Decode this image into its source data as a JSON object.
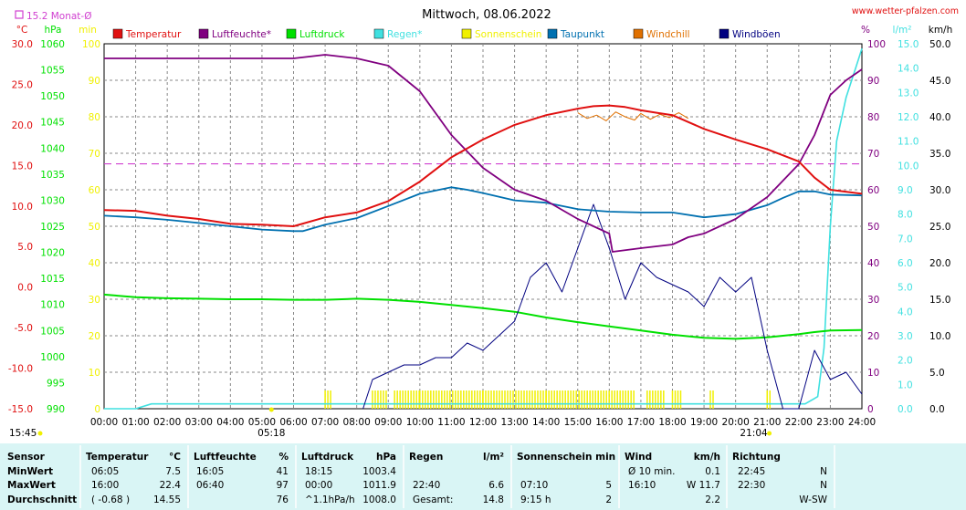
{
  "header": {
    "date_title": "Mittwoch, 08.06.2022",
    "website": "www.wetter-pfalzen.com",
    "monthly_avg_label": "15.2 Monat-Ø",
    "sunrise_time": "05:18",
    "sunset_time": "21:04",
    "run_time": "15:45"
  },
  "colors": {
    "temperature": "#e01010",
    "humidity": "#800080",
    "pressure": "#00e000",
    "rain": "#40e0e0",
    "sunshine": "#f0f000",
    "dewpoint": "#0070b0",
    "windchill": "#e07000",
    "gusts": "#000080",
    "monthly_avg": "#d040d0",
    "stats_bg": "#d9f5f5"
  },
  "chart_data": {
    "type": "line",
    "title": "Mittwoch, 08.06.2022",
    "x_ticks": [
      "00:00",
      "01:00",
      "02:00",
      "03:00",
      "04:00",
      "05:00",
      "06:00",
      "07:00",
      "08:00",
      "09:00",
      "10:00",
      "11:00",
      "12:00",
      "13:00",
      "14:00",
      "15:00",
      "16:00",
      "17:00",
      "18:00",
      "19:00",
      "20:00",
      "21:00",
      "22:00",
      "23:00",
      "24:00"
    ],
    "x_range_hours": [
      0,
      24
    ],
    "grid": true,
    "legend_position": "top",
    "axes": {
      "temperature": {
        "unit": "°C",
        "range": [
          -15,
          30
        ],
        "ticks": [
          "30.0",
          "25.0",
          "20.0",
          "15.0",
          "10.0",
          "5.0",
          "0.0",
          "-5.0",
          "-10.0",
          "-15.0"
        ]
      },
      "pressure": {
        "unit": "hPa",
        "range": [
          990,
          1060
        ],
        "ticks": [
          "1060",
          "1055",
          "1050",
          "1045",
          "1040",
          "1035",
          "1030",
          "1025",
          "1020",
          "1015",
          "1010",
          "1005",
          "1000",
          "995",
          "990"
        ]
      },
      "sunshine": {
        "unit": "min",
        "range": [
          0,
          100
        ],
        "ticks": [
          "100",
          "90",
          "80",
          "70",
          "60",
          "50",
          "40",
          "30",
          "20",
          "10",
          "0"
        ]
      },
      "humidity": {
        "unit": "%",
        "range": [
          0,
          100
        ],
        "ticks": [
          "100",
          "90",
          "80",
          "70",
          "60",
          "50",
          "40",
          "30",
          "20",
          "10",
          "0"
        ]
      },
      "rain": {
        "unit": "l/m²",
        "range": [
          0,
          15
        ],
        "ticks": [
          "15.0",
          "14.0",
          "13.0",
          "12.0",
          "11.0",
          "10.0",
          "9.0",
          "8.0",
          "7.0",
          "6.0",
          "5.0",
          "4.0",
          "3.0",
          "2.0",
          "1.0",
          "0.0"
        ]
      },
      "wind": {
        "unit": "km/h",
        "range": [
          0,
          50
        ],
        "ticks": [
          "50.0",
          "45.0",
          "40.0",
          "35.0",
          "30.0",
          "25.0",
          "20.0",
          "15.0",
          "10.0",
          "5.0",
          "0.0"
        ]
      }
    },
    "legend": [
      {
        "key": "temperature",
        "label": "Temperatur"
      },
      {
        "key": "humidity",
        "label": "Luftfeuchte*"
      },
      {
        "key": "pressure",
        "label": "Luftdruck"
      },
      {
        "key": "rain",
        "label": "Regen*"
      },
      {
        "key": "sunshine",
        "label": "Sonnenschein"
      },
      {
        "key": "dewpoint",
        "label": "Taupunkt"
      },
      {
        "key": "windchill",
        "label": "Windchill"
      },
      {
        "key": "gusts",
        "label": "Windböen"
      }
    ],
    "monthly_avg_temperature": 15.2,
    "series": [
      {
        "key": "temperature",
        "axis": "temperature",
        "x": [
          0,
          1,
          2,
          3,
          4,
          5,
          6,
          7,
          8,
          9,
          10,
          11,
          12,
          13,
          14,
          15,
          15.5,
          16,
          16.5,
          17,
          17.5,
          18,
          19,
          20,
          21,
          22,
          22.5,
          23,
          24
        ],
        "y": [
          9.5,
          9.4,
          8.8,
          8.4,
          7.8,
          7.7,
          7.5,
          8.6,
          9.2,
          10.6,
          13.0,
          16.0,
          18.2,
          20.0,
          21.2,
          22.0,
          22.3,
          22.4,
          22.2,
          21.8,
          21.5,
          21.2,
          19.5,
          18.2,
          17.0,
          15.5,
          13.5,
          12.0,
          11.5
        ]
      },
      {
        "key": "humidity",
        "axis": "humidity",
        "x": [
          0,
          1,
          2,
          3,
          4,
          5,
          6,
          6.5,
          7,
          8,
          9,
          10,
          11,
          12,
          12.5,
          13,
          14,
          15,
          15.5,
          16,
          16.1,
          17,
          18,
          18.5,
          19,
          20,
          21,
          22,
          22.5,
          23,
          23.5,
          24
        ],
        "y": [
          96,
          96,
          96,
          96,
          96,
          96,
          96,
          96.5,
          97,
          96,
          94,
          87,
          75,
          66,
          63,
          60,
          57,
          52,
          50,
          48,
          43,
          44,
          45,
          47,
          48,
          52,
          58,
          67,
          75,
          86,
          90,
          93
        ]
      },
      {
        "key": "pressure",
        "axis": "pressure",
        "x": [
          0,
          1,
          2,
          3,
          4,
          5,
          6,
          7,
          8,
          9,
          10,
          11,
          12,
          13,
          14,
          15,
          16,
          17,
          18,
          19,
          20,
          21,
          22,
          22.5,
          23,
          24
        ],
        "y": [
          1011.9,
          1011.4,
          1011.2,
          1011.1,
          1011.0,
          1011.0,
          1010.9,
          1010.9,
          1011.1,
          1010.9,
          1010.5,
          1009.9,
          1009.3,
          1008.6,
          1007.5,
          1006.6,
          1005.8,
          1005.0,
          1004.2,
          1003.6,
          1003.4,
          1003.7,
          1004.3,
          1004.7,
          1005.0,
          1005.1
        ]
      },
      {
        "key": "dewpoint",
        "axis": "temperature",
        "x": [
          0,
          1,
          2,
          3,
          4,
          5,
          6,
          6.3,
          7,
          8,
          9,
          10,
          11,
          11.5,
          12,
          13,
          14,
          15,
          16,
          17,
          18,
          19,
          20,
          21,
          21.5,
          22,
          22.5,
          23,
          24
        ],
        "y": [
          8.8,
          8.6,
          8.3,
          7.9,
          7.5,
          7.1,
          6.9,
          6.9,
          7.7,
          8.5,
          10.0,
          11.5,
          12.3,
          12.0,
          11.6,
          10.7,
          10.4,
          9.6,
          9.3,
          9.2,
          9.2,
          8.6,
          9.0,
          10.1,
          11.0,
          11.8,
          11.8,
          11.4,
          11.3
        ]
      },
      {
        "key": "windchill",
        "axis": "temperature",
        "x": [
          15.0,
          15.3,
          15.6,
          15.9,
          16.2,
          16.5,
          16.8,
          17.0,
          17.3,
          17.6,
          17.9,
          18.2,
          18.5
        ],
        "y": [
          21.5,
          20.8,
          21.2,
          20.5,
          21.6,
          21.0,
          20.6,
          21.4,
          20.7,
          21.3,
          20.9,
          21.5,
          20.8
        ]
      },
      {
        "key": "rain",
        "axis": "rain",
        "x": [
          0,
          1.0,
          1.5,
          2,
          10,
          22.2,
          22.6,
          22.8,
          23.0,
          23.2,
          23.5,
          23.8,
          24
        ],
        "y": [
          0,
          0,
          0.2,
          0.2,
          0.2,
          0.2,
          0.5,
          2.5,
          7.5,
          11,
          12.8,
          14.0,
          14.8
        ]
      },
      {
        "key": "gusts",
        "axis": "wind",
        "x": [
          8.2,
          8.5,
          9.0,
          9.5,
          10,
          10.5,
          11,
          11.5,
          12,
          12.5,
          13,
          13.5,
          14,
          14.5,
          15,
          15.5,
          16,
          16.5,
          17,
          17.5,
          18,
          18.5,
          19,
          19.5,
          20,
          20.5,
          21,
          21.5,
          22,
          22.5,
          23,
          23.5,
          24
        ],
        "y": [
          0,
          4,
          5,
          6,
          6,
          7,
          7,
          9,
          8,
          10,
          12,
          18,
          20,
          16,
          22,
          28,
          22,
          15,
          20,
          18,
          17,
          16,
          14,
          18,
          16,
          18,
          8,
          0,
          0,
          8,
          4,
          5,
          2
        ]
      }
    ],
    "sunshine_hours_ranges": [
      [
        7.0,
        7.2
      ],
      [
        8.5,
        9.0
      ],
      [
        9.2,
        10.0
      ],
      [
        10.0,
        12.0
      ],
      [
        12.0,
        14.0
      ],
      [
        14.0,
        16.8
      ],
      [
        17.2,
        17.8
      ],
      [
        18.0,
        18.3
      ],
      [
        19.2,
        19.3
      ],
      [
        21.0,
        21.1
      ]
    ]
  },
  "stats": {
    "headers": {
      "sensor": "Sensor",
      "temperature": "Temperatur",
      "temperature_unit": "°C",
      "humidity": "Luftfeuchte",
      "humidity_unit": "%",
      "pressure": "Luftdruck",
      "pressure_unit": "hPa",
      "rain": "Regen",
      "rain_unit": "l/m²",
      "sunshine": "Sonnenschein min",
      "wind": "Wind",
      "wind_unit": "km/h",
      "direction": "Richtung"
    },
    "rows": [
      {
        "label": "MinWert",
        "temp_time": "06:05",
        "temp_val": "7.5",
        "hum_time": "16:05",
        "hum_val": "41",
        "press_time": "18:15",
        "press_val": "1003.4",
        "rain_time": "",
        "rain_val": "",
        "sun_time": "",
        "sun_val": "",
        "wind_time": "Ø 10 min.",
        "wind_val": "0.1",
        "dir_time": "22:45",
        "dir_val": "N"
      },
      {
        "label": "MaxWert",
        "temp_time": "16:00",
        "temp_val": "22.4",
        "hum_time": "06:40",
        "hum_val": "97",
        "press_time": "00:00",
        "press_val": "1011.9",
        "rain_time": "22:40",
        "rain_val": "6.6",
        "sun_time": "07:10",
        "sun_val": "5",
        "wind_time": "16:10",
        "wind_val": "W 11.7",
        "dir_time": "22:30",
        "dir_val": "N"
      },
      {
        "label": "Durchschnitt",
        "temp_time": "( -0.68 )",
        "temp_val": "14.55",
        "hum_time": "",
        "hum_val": "76",
        "press_time": "^1.1hPa/h",
        "press_val": "1008.0",
        "rain_time": "Gesamt:",
        "rain_val": "14.8",
        "sun_time": "9:15 h",
        "sun_val": "2",
        "wind_time": "",
        "wind_val": "2.2",
        "dir_time": "",
        "dir_val": "W-SW"
      }
    ]
  }
}
